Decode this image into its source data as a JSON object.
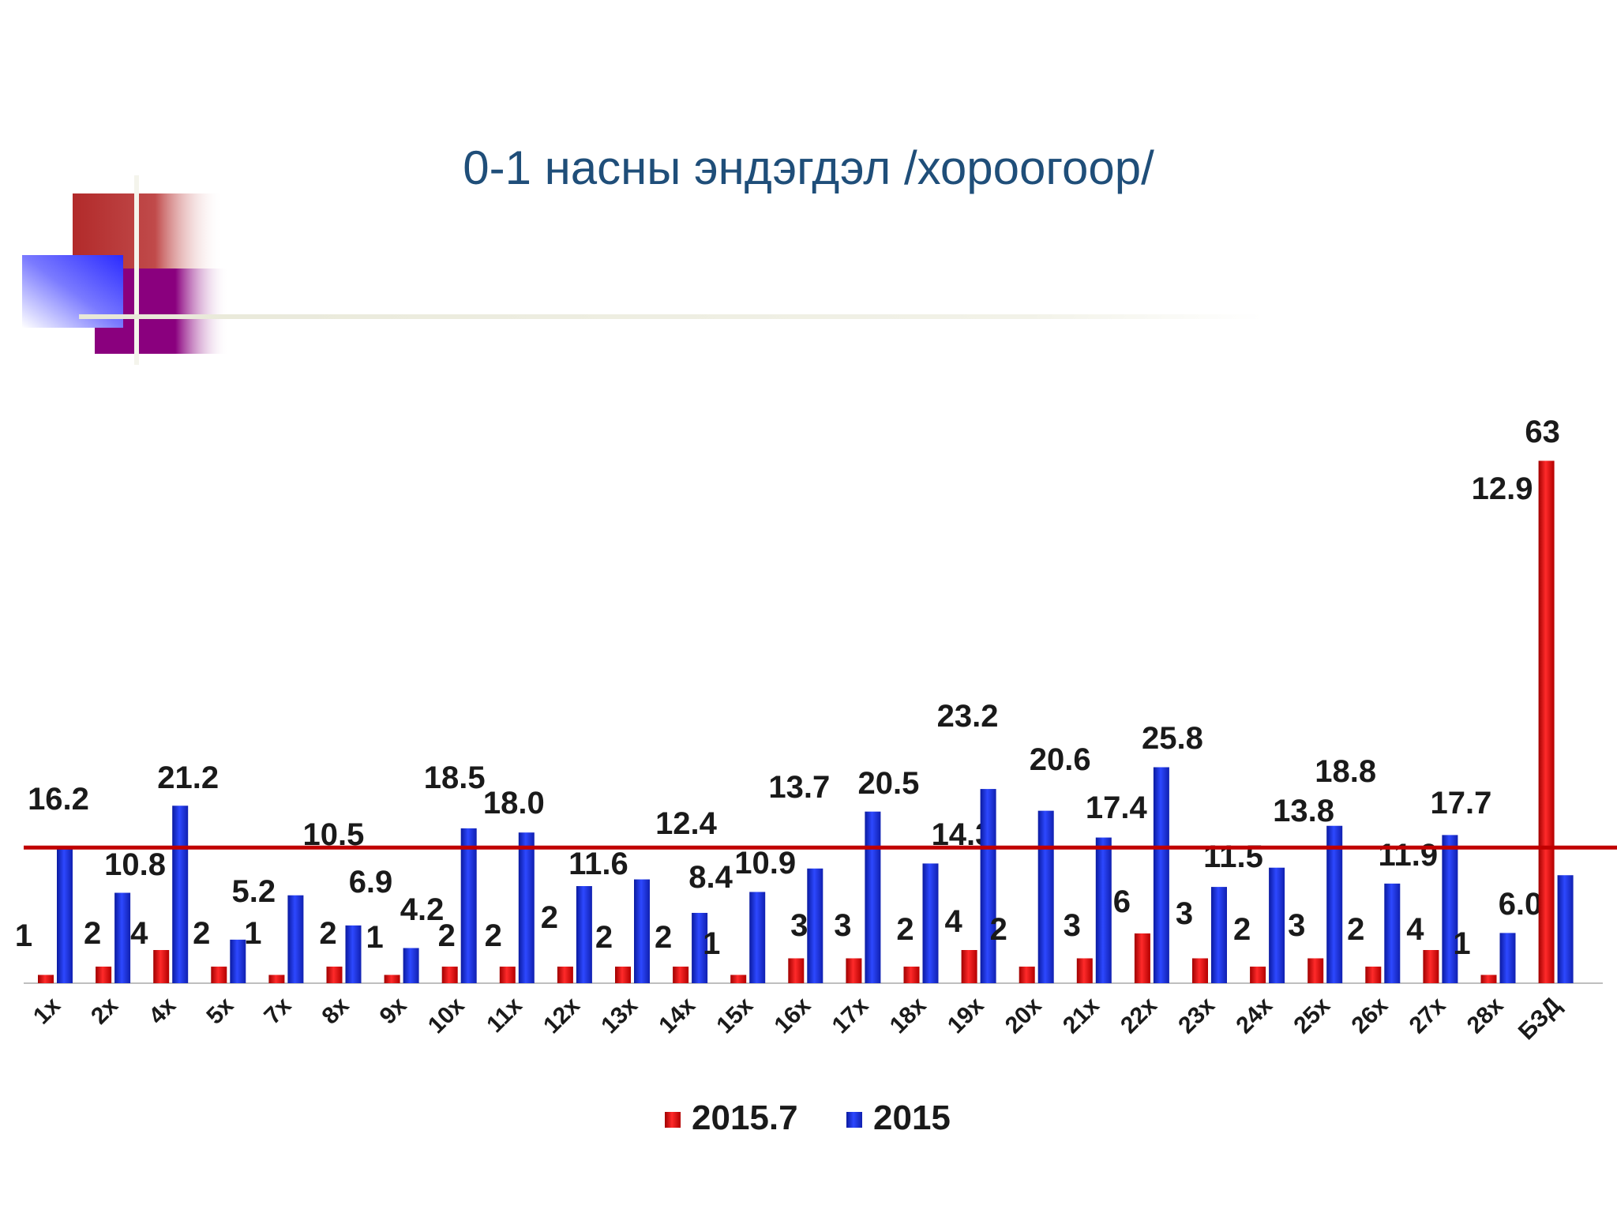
{
  "slide": {
    "title": "0-1 насны эндэгдэл /хороогоор/"
  },
  "chart_data": {
    "type": "bar",
    "title": "",
    "categories": [
      "1х",
      "2х",
      "4х",
      "5х",
      "7х",
      "8х",
      "9х",
      "10х",
      "11х",
      "12х",
      "13х",
      "14х",
      "15х",
      "16х",
      "17х",
      "18х",
      "19х",
      "20х",
      "21х",
      "22х",
      "23х",
      "24х",
      "25х",
      "26х",
      "27х",
      "28х",
      "БЗД"
    ],
    "series": [
      {
        "name": "2015.7",
        "color": "#e8141b",
        "values": [
          1,
          2,
          4,
          2,
          1,
          2,
          1,
          2,
          2,
          2,
          2,
          2,
          1,
          3,
          3,
          2,
          4,
          2,
          3,
          6,
          3,
          2,
          3,
          2,
          4,
          1,
          63
        ]
      },
      {
        "name": "2015",
        "color": "#1a2fd6",
        "values": [
          16.2,
          10.8,
          21.2,
          5.2,
          10.5,
          6.9,
          4.2,
          18.5,
          18.0,
          11.6,
          12.4,
          8.4,
          10.9,
          13.7,
          20.5,
          14.3,
          23.2,
          20.6,
          17.4,
          25.8,
          11.5,
          13.8,
          18.8,
          11.9,
          17.7,
          6.0,
          12.9
        ]
      }
    ],
    "reference_line": {
      "value": 16.2,
      "color": "#c00000"
    },
    "legend_position": "bottom",
    "grid": false
  }
}
